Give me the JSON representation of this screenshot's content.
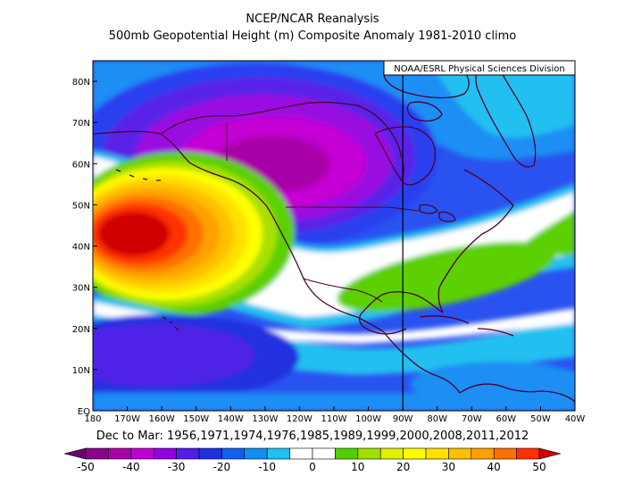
{
  "title": "NCEP/NCAR Reanalysis",
  "subtitle": "500mb Geopotential Height (m) Composite Anomaly 1981-2010 climo",
  "credit": "NOAA/ESRL Physical Sciences Division",
  "period_label": "Dec to Mar: 1956,1971,1974,1976,1985,1989,1999,2000,2008,2011,2012",
  "map": {
    "lat_range": [
      0,
      85
    ],
    "lon_range": [
      -180,
      -40
    ],
    "lat_ticks": [
      "EQ",
      "10N",
      "20N",
      "30N",
      "40N",
      "50N",
      "60N",
      "70N",
      "80N"
    ],
    "lon_ticks": [
      "180",
      "170W",
      "160W",
      "150W",
      "140W",
      "130W",
      "120W",
      "110W",
      "100W",
      "90W",
      "80W",
      "70W",
      "60W",
      "50W",
      "40W"
    ],
    "reference_meridian": "90W",
    "anomaly_centers": [
      {
        "type": "positive",
        "lon": -160,
        "lat": 40,
        "value": 50
      },
      {
        "type": "negative",
        "lon": -123,
        "lat": 61,
        "value": -40
      },
      {
        "type": "positive",
        "lon": -80,
        "lat": 34,
        "value": 10
      },
      {
        "type": "negative",
        "lon": -160,
        "lat": 13,
        "value": -20
      }
    ]
  },
  "colorbar": {
    "labels": [
      "-50",
      "-40",
      "-30",
      "-20",
      "-10",
      "0",
      "10",
      "20",
      "30",
      "40",
      "50"
    ],
    "colors": [
      "#6b006b",
      "#8b008b",
      "#a800a8",
      "#c000d0",
      "#9000e0",
      "#5020e8",
      "#2030e0",
      "#1060f0",
      "#1090f0",
      "#20c0f0",
      "#ffffff",
      "#ffffff",
      "#50d000",
      "#a0e000",
      "#e0f000",
      "#ffff00",
      "#ffe000",
      "#ffc000",
      "#ffa000",
      "#ff7000",
      "#ff3000",
      "#d00000"
    ]
  }
}
